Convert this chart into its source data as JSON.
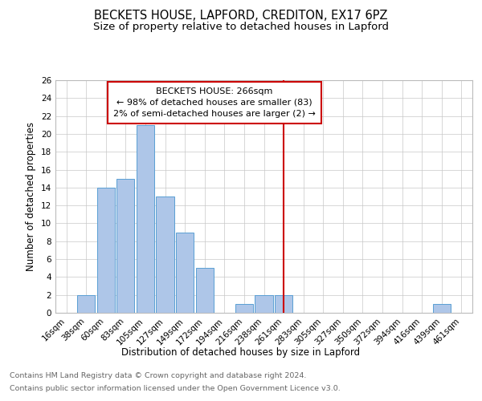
{
  "title1": "BECKETS HOUSE, LAPFORD, CREDITON, EX17 6PZ",
  "title2": "Size of property relative to detached houses in Lapford",
  "xlabel": "Distribution of detached houses by size in Lapford",
  "ylabel": "Number of detached properties",
  "footnote1": "Contains HM Land Registry data © Crown copyright and database right 2024.",
  "footnote2": "Contains public sector information licensed under the Open Government Licence v3.0.",
  "bin_labels": [
    "16sqm",
    "38sqm",
    "60sqm",
    "83sqm",
    "105sqm",
    "127sqm",
    "149sqm",
    "172sqm",
    "194sqm",
    "216sqm",
    "238sqm",
    "261sqm",
    "283sqm",
    "305sqm",
    "327sqm",
    "350sqm",
    "372sqm",
    "394sqm",
    "416sqm",
    "439sqm",
    "461sqm"
  ],
  "bar_heights": [
    0,
    2,
    14,
    15,
    21,
    13,
    9,
    5,
    0,
    1,
    2,
    2,
    0,
    0,
    0,
    0,
    0,
    0,
    0,
    1,
    0
  ],
  "bar_color": "#aec6e8",
  "bar_edge_color": "#5a9fd4",
  "reference_line_x_label": "261sqm",
  "reference_line_color": "#cc0000",
  "annotation_title": "BECKETS HOUSE: 266sqm",
  "annotation_line1": "← 98% of detached houses are smaller (83)",
  "annotation_line2": "2% of semi-detached houses are larger (2) →",
  "ylim": [
    0,
    26
  ],
  "yticks": [
    0,
    2,
    4,
    6,
    8,
    10,
    12,
    14,
    16,
    18,
    20,
    22,
    24,
    26
  ],
  "background_color": "#ffffff",
  "grid_color": "#c8c8c8",
  "title1_fontsize": 10.5,
  "title2_fontsize": 9.5,
  "axis_label_fontsize": 8.5,
  "tick_fontsize": 7.5,
  "annotation_fontsize": 8,
  "footnote_fontsize": 6.8
}
